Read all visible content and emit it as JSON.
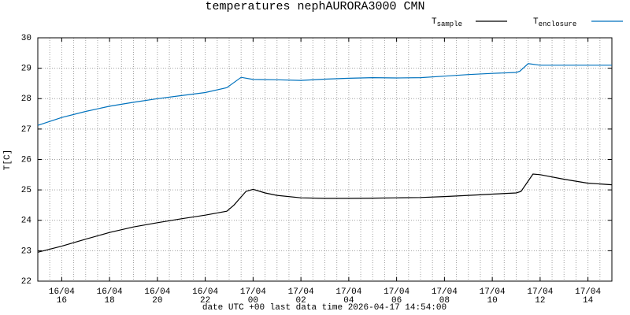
{
  "chart_data": {
    "type": "line",
    "title": "temperatures nephAURORA3000 CMN",
    "x_label": "date UTC +00 last data time 2026-04-17 14:54:00",
    "y_label": "T[C]",
    "xlim": [
      15,
      39
    ],
    "ylim": [
      22,
      30
    ],
    "yticks": [
      22,
      23,
      24,
      25,
      26,
      27,
      28,
      29,
      30
    ],
    "xticks": [
      {
        "value": 16,
        "label": [
          "16/04",
          "16"
        ]
      },
      {
        "value": 18,
        "label": [
          "16/04",
          "18"
        ]
      },
      {
        "value": 20,
        "label": [
          "16/04",
          "20"
        ]
      },
      {
        "value": 22,
        "label": [
          "16/04",
          "22"
        ]
      },
      {
        "value": 24,
        "label": [
          "17/04",
          "00"
        ]
      },
      {
        "value": 26,
        "label": [
          "17/04",
          "02"
        ]
      },
      {
        "value": 28,
        "label": [
          "17/04",
          "04"
        ]
      },
      {
        "value": 30,
        "label": [
          "17/04",
          "06"
        ]
      },
      {
        "value": 32,
        "label": [
          "17/04",
          "08"
        ]
      },
      {
        "value": 34,
        "label": [
          "17/04",
          "10"
        ]
      },
      {
        "value": 36,
        "label": [
          "17/04",
          "12"
        ]
      },
      {
        "value": 38,
        "label": [
          "17/04",
          "14"
        ]
      }
    ],
    "x_minor_step": 0.5,
    "grid": true,
    "legend": "top-right",
    "series": [
      {
        "name": "T",
        "name_sub": "sample",
        "color": "#000000",
        "x": [
          15,
          16,
          17,
          18,
          19,
          20,
          21,
          22,
          22.9,
          23.2,
          23.7,
          24,
          24.5,
          25,
          26,
          27,
          28,
          29,
          30,
          31,
          32,
          33,
          34,
          35,
          35.2,
          35.7,
          36,
          37,
          38,
          39
        ],
        "values": [
          22.95,
          23.15,
          23.38,
          23.6,
          23.78,
          23.92,
          24.05,
          24.17,
          24.3,
          24.5,
          24.95,
          25.02,
          24.9,
          24.82,
          24.74,
          24.72,
          24.72,
          24.73,
          24.74,
          24.75,
          24.78,
          24.82,
          24.86,
          24.9,
          24.95,
          25.52,
          25.5,
          25.35,
          25.22,
          25.17
        ]
      },
      {
        "name": "T",
        "name_sub": "enclosure",
        "color": "#0072bd",
        "x": [
          15,
          16,
          17,
          18,
          19,
          20,
          21,
          22,
          22.9,
          23.5,
          24,
          25,
          26,
          27,
          28,
          29,
          30,
          31,
          32,
          33,
          34,
          35,
          35.15,
          35.5,
          36,
          37,
          38,
          39
        ],
        "values": [
          27.12,
          27.38,
          27.58,
          27.75,
          27.88,
          28.0,
          28.1,
          28.2,
          28.36,
          28.7,
          28.63,
          28.62,
          28.6,
          28.64,
          28.67,
          28.69,
          28.68,
          28.69,
          28.74,
          28.79,
          28.83,
          28.86,
          28.9,
          29.15,
          29.1,
          29.1,
          29.1,
          29.1
        ]
      }
    ]
  }
}
